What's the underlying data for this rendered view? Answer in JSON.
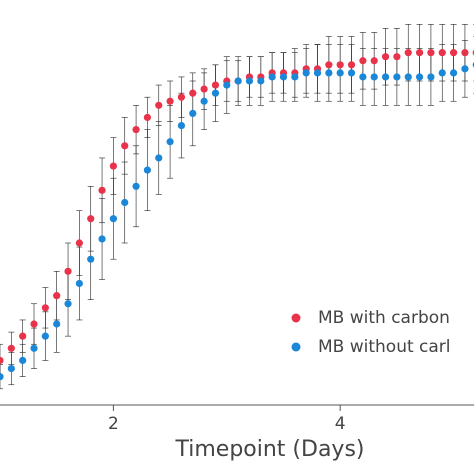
{
  "chart_data": {
    "type": "scatter",
    "xlabel": "Timepoint (Days)",
    "x": [
      1.0,
      1.1,
      1.2,
      1.3,
      1.4,
      1.5,
      1.6,
      1.7,
      1.8,
      1.9,
      2.0,
      2.1,
      2.2,
      2.3,
      2.4,
      2.5,
      2.6,
      2.7,
      2.8,
      2.9,
      3.0,
      3.1,
      3.2,
      3.3,
      3.4,
      3.5,
      3.6,
      3.7,
      3.8,
      3.9,
      4.0,
      4.1,
      4.2,
      4.3,
      4.4,
      4.5,
      4.6,
      4.7,
      4.8,
      4.9,
      5.0,
      5.1,
      5.2
    ],
    "series": [
      {
        "name": "MB with carbon",
        "color": "#e8334a",
        "values": [
          0.11,
          0.14,
          0.17,
          0.2,
          0.24,
          0.27,
          0.33,
          0.4,
          0.46,
          0.53,
          0.59,
          0.64,
          0.68,
          0.71,
          0.74,
          0.75,
          0.76,
          0.77,
          0.78,
          0.79,
          0.8,
          0.8,
          0.81,
          0.81,
          0.82,
          0.82,
          0.82,
          0.83,
          0.83,
          0.84,
          0.84,
          0.84,
          0.85,
          0.85,
          0.86,
          0.86,
          0.87,
          0.87,
          0.87,
          0.87,
          0.87,
          0.87,
          0.87
        ],
        "errors": [
          0.04,
          0.04,
          0.04,
          0.05,
          0.05,
          0.06,
          0.07,
          0.08,
          0.08,
          0.08,
          0.07,
          0.07,
          0.06,
          0.05,
          0.05,
          0.05,
          0.05,
          0.05,
          0.05,
          0.05,
          0.05,
          0.05,
          0.05,
          0.05,
          0.05,
          0.05,
          0.06,
          0.06,
          0.06,
          0.07,
          0.07,
          0.07,
          0.07,
          0.07,
          0.07,
          0.07,
          0.07,
          0.07,
          0.07,
          0.07,
          0.07,
          0.07,
          0.07
        ]
      },
      {
        "name": "MB without carl",
        "color": "#1a87d8",
        "values": [
          0.07,
          0.09,
          0.11,
          0.14,
          0.17,
          0.2,
          0.25,
          0.3,
          0.36,
          0.41,
          0.46,
          0.5,
          0.54,
          0.58,
          0.61,
          0.65,
          0.69,
          0.72,
          0.75,
          0.77,
          0.79,
          0.8,
          0.8,
          0.8,
          0.81,
          0.81,
          0.81,
          0.82,
          0.82,
          0.82,
          0.82,
          0.82,
          0.81,
          0.81,
          0.81,
          0.81,
          0.81,
          0.81,
          0.81,
          0.82,
          0.82,
          0.83,
          0.84
        ],
        "errors": [
          0.03,
          0.04,
          0.04,
          0.05,
          0.06,
          0.07,
          0.08,
          0.09,
          0.1,
          0.1,
          0.1,
          0.1,
          0.1,
          0.1,
          0.09,
          0.09,
          0.08,
          0.08,
          0.07,
          0.07,
          0.07,
          0.06,
          0.06,
          0.06,
          0.06,
          0.06,
          0.06,
          0.06,
          0.07,
          0.07,
          0.07,
          0.07,
          0.07,
          0.07,
          0.07,
          0.07,
          0.07,
          0.07,
          0.07,
          0.07,
          0.07,
          0.07,
          0.07
        ]
      }
    ],
    "xlim": [
      1.0,
      5.18
    ],
    "ylim": [
      0,
      1.0
    ],
    "xticks": [
      2,
      4
    ],
    "legend": "lower right"
  }
}
